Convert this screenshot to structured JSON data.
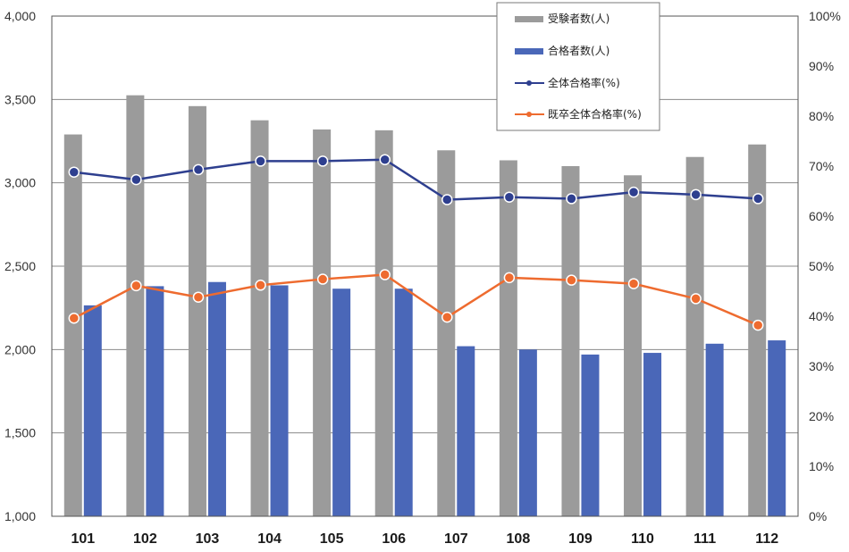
{
  "chart_data": {
    "type": "bar",
    "categories": [
      "101",
      "102",
      "103",
      "104",
      "105",
      "106",
      "107",
      "108",
      "109",
      "110",
      "111",
      "112"
    ],
    "left_axis": {
      "ylim": [
        1000,
        4000
      ],
      "ticks": [
        "1,000",
        "1,500",
        "2,000",
        "2,500",
        "3,000",
        "3,500",
        "4,000"
      ],
      "tick_values": [
        1000,
        1500,
        2000,
        2500,
        3000,
        3500,
        4000
      ]
    },
    "right_axis": {
      "ylim": [
        0,
        100
      ],
      "ticks": [
        "0%",
        "10%",
        "20%",
        "30%",
        "40%",
        "50%",
        "60%",
        "70%",
        "80%",
        "90%",
        "100%"
      ],
      "tick_values": [
        0,
        10,
        20,
        30,
        40,
        50,
        60,
        70,
        80,
        90,
        100
      ]
    },
    "series": [
      {
        "name": "受験者数(人)",
        "kind": "bar",
        "axis": "left",
        "color": "#9b9b9b",
        "values": [
          3290,
          3525,
          3460,
          3375,
          3320,
          3315,
          3195,
          3135,
          3100,
          3045,
          3155,
          3230
        ]
      },
      {
        "name": "合格者数(人)",
        "kind": "bar",
        "axis": "left",
        "color": "#4a67b8",
        "values": [
          2265,
          2380,
          2405,
          2385,
          2365,
          2365,
          2020,
          2000,
          1970,
          1980,
          2035,
          2055
        ]
      },
      {
        "name": "全体合格率(%)",
        "kind": "line",
        "axis": "right",
        "color": "#2e3f8f",
        "values": [
          68.8,
          67.3,
          69.3,
          71.0,
          71.0,
          71.3,
          63.3,
          63.8,
          63.5,
          64.8,
          64.3,
          63.5
        ]
      },
      {
        "name": "既卒全体合格率(%)",
        "kind": "line",
        "axis": "right",
        "color": "#ee6b2f",
        "values": [
          39.6,
          46.1,
          43.8,
          46.2,
          47.4,
          48.3,
          39.8,
          47.7,
          47.2,
          46.5,
          43.5,
          38.2
        ]
      }
    ],
    "grid": true,
    "legend_position": "top-right"
  }
}
